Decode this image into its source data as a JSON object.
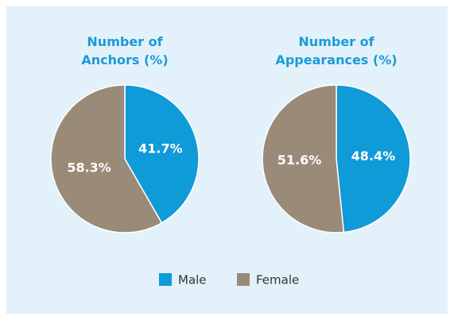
{
  "chart_data": [
    {
      "type": "pie",
      "title": "Number of Anchors (%)",
      "categories": [
        "Male",
        "Female"
      ],
      "values": [
        41.7,
        58.3
      ],
      "value_labels": [
        "41.7%",
        "58.3%"
      ],
      "colors": [
        "#0f9ad8",
        "#9a8a78"
      ]
    },
    {
      "type": "pie",
      "title": "Number of Appearances (%)",
      "categories": [
        "Male",
        "Female"
      ],
      "values": [
        48.4,
        51.6
      ],
      "value_labels": [
        "48.4%",
        "51.6%"
      ],
      "colors": [
        "#0f9ad8",
        "#9a8a78"
      ]
    }
  ]
}
